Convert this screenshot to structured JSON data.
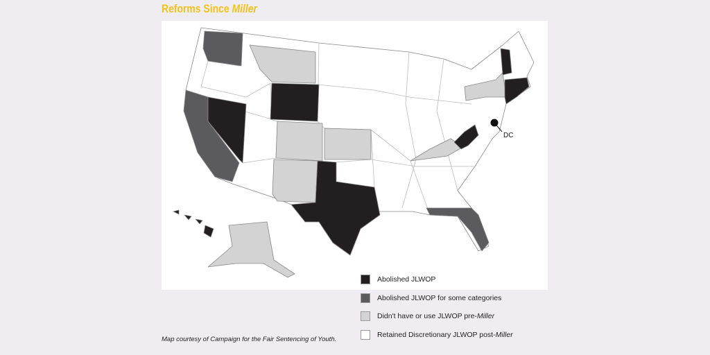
{
  "header": {
    "title": "Reforms Since ",
    "title_emphasis": "Miller"
  },
  "map": {
    "dc_label": "DC"
  },
  "legend": {
    "items": [
      {
        "text": "Abolished JLWOP",
        "color": "#231f20"
      },
      {
        "text": "Abolished JLWOP for some categories",
        "color": "#5b5b5d"
      },
      {
        "text": "Didn't have or use JLWOP pre-",
        "emphasis": "Miller",
        "color": "#d3d3d4"
      },
      {
        "text": "Retained Discretionary JLWOP post-",
        "emphasis": "Miller",
        "color": "#ffffff"
      }
    ]
  },
  "caption": "Map courtesy of Campaign for the Fair Sentencing of Youth."
}
